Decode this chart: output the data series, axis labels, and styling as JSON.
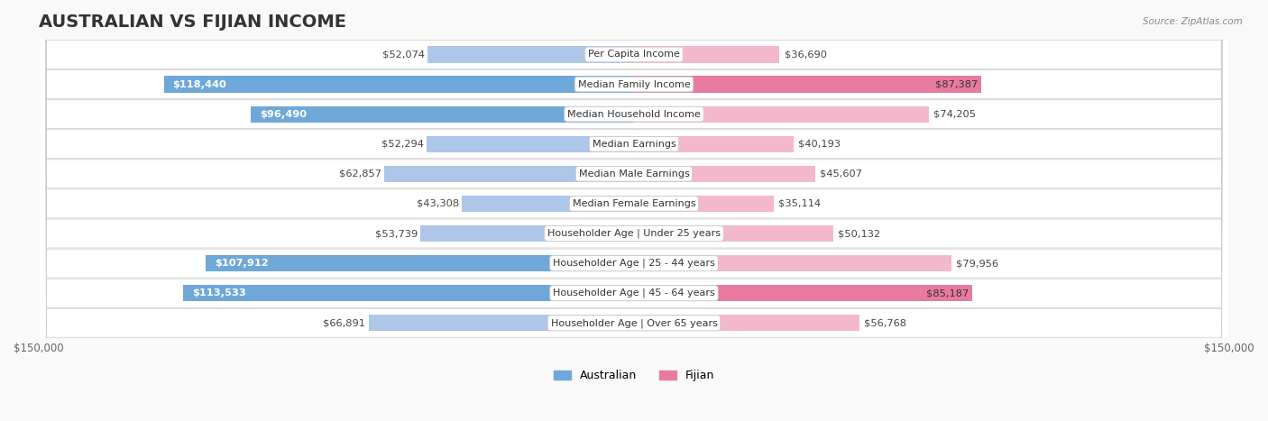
{
  "title": "AUSTRALIAN VS FIJIAN INCOME",
  "source": "Source: ZipAtlas.com",
  "categories": [
    "Per Capita Income",
    "Median Family Income",
    "Median Household Income",
    "Median Earnings",
    "Median Male Earnings",
    "Median Female Earnings",
    "Householder Age | Under 25 years",
    "Householder Age | 25 - 44 years",
    "Householder Age | 45 - 64 years",
    "Householder Age | Over 65 years"
  ],
  "australian_values": [
    52074,
    118440,
    96490,
    52294,
    62857,
    43308,
    53739,
    107912,
    113533,
    66891
  ],
  "fijian_values": [
    36690,
    87387,
    74205,
    40193,
    45607,
    35114,
    50132,
    79956,
    85187,
    56768
  ],
  "australian_labels": [
    "$52,074",
    "$118,440",
    "$96,490",
    "$52,294",
    "$62,857",
    "$43,308",
    "$53,739",
    "$107,912",
    "$113,533",
    "$66,891"
  ],
  "fijian_labels": [
    "$36,690",
    "$87,387",
    "$74,205",
    "$40,193",
    "$45,607",
    "$35,114",
    "$50,132",
    "$79,956",
    "$85,187",
    "$56,768"
  ],
  "max_value": 150000,
  "australian_color_low": "#aec6e8",
  "australian_color_high": "#6fa8d8",
  "fijian_color_low": "#f4b8cc",
  "fijian_color_high": "#e87aa0",
  "threshold": 80000,
  "background_color": "#f5f5f5",
  "row_bg_color": "#ffffff",
  "row_alt_color": "#f0f0f0",
  "legend_australian": "Australian",
  "legend_fijian": "Fijian",
  "title_fontsize": 14,
  "label_fontsize": 9,
  "category_fontsize": 8.5
}
